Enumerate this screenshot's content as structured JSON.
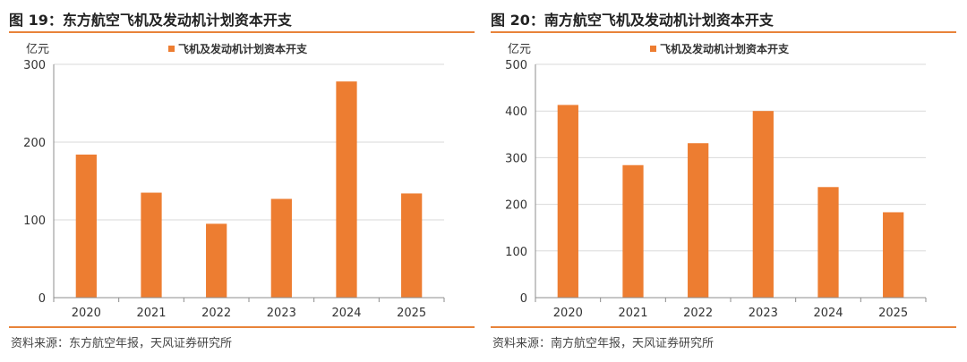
{
  "charts": [
    {
      "figure_title": "图 19：东方航空飞机及发动机计划资本开支",
      "source": "资料来源：东方航空年报，天风证券研究所"
    },
    {
      "figure_title": "图 20：南方航空飞机及发动机计划资本开支",
      "source": "资料来源：南方航空年报，天风证券研究所"
    }
  ],
  "colors": {
    "bar": "#ed7d31",
    "rule": "#e8833a",
    "grid": "#d9d9d9"
  },
  "chart_data": [
    {
      "type": "bar",
      "title": "图 19：东方航空飞机及发动机计划资本开支",
      "ylabel": "亿元",
      "legend": "飞机及发动机计划资本开支",
      "categories": [
        "2020",
        "2021",
        "2022",
        "2023",
        "2024",
        "2025"
      ],
      "values": [
        184,
        135,
        95,
        127,
        278,
        134
      ],
      "ylim": [
        0,
        300
      ],
      "yticks": [
        0,
        100,
        200,
        300
      ]
    },
    {
      "type": "bar",
      "title": "图 20：南方航空飞机及发动机计划资本开支",
      "ylabel": "亿元",
      "legend": "飞机及发动机计划资本开支",
      "categories": [
        "2020",
        "2021",
        "2022",
        "2023",
        "2024",
        "2025"
      ],
      "values": [
        413,
        284,
        331,
        400,
        237,
        183
      ],
      "ylim": [
        0,
        500
      ],
      "yticks": [
        0,
        100,
        200,
        300,
        400,
        500
      ]
    }
  ]
}
